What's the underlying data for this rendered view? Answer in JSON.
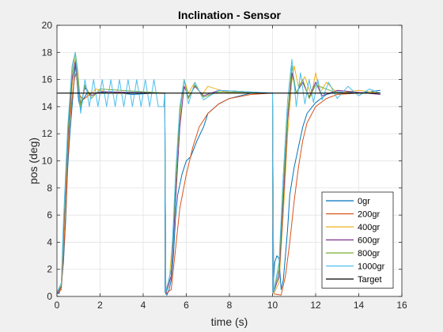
{
  "chart_data": {
    "type": "line",
    "title": "Inclination - Sensor",
    "xlabel": "time (s)",
    "ylabel": "pos (deg)",
    "xlim": [
      0,
      16
    ],
    "ylim": [
      0,
      20
    ],
    "xticks": [
      0,
      2,
      4,
      6,
      8,
      10,
      12,
      14,
      16
    ],
    "yticks": [
      0,
      2,
      4,
      6,
      8,
      10,
      12,
      14,
      16,
      18,
      20
    ],
    "grid": true,
    "legend_position": "bottom-right",
    "series": [
      {
        "name": "0gr",
        "color": "#0072BD",
        "points": [
          [
            0,
            0.3
          ],
          [
            0.1,
            0.2
          ],
          [
            0.2,
            0.8
          ],
          [
            0.3,
            2.5
          ],
          [
            0.4,
            5.5
          ],
          [
            0.5,
            9.5
          ],
          [
            0.6,
            12
          ],
          [
            0.7,
            14
          ],
          [
            0.8,
            16
          ],
          [
            0.85,
            17
          ],
          [
            0.9,
            16.5
          ],
          [
            1.0,
            14.5
          ],
          [
            1.1,
            13.8
          ],
          [
            1.2,
            14.5
          ],
          [
            1.4,
            15
          ],
          [
            1.8,
            15
          ],
          [
            2.5,
            15.1
          ],
          [
            3.5,
            14.9
          ],
          [
            4.5,
            15
          ],
          [
            5.0,
            15
          ],
          [
            5.02,
            0.3
          ],
          [
            5.1,
            0.1
          ],
          [
            5.2,
            0.5
          ],
          [
            5.3,
            1.2
          ],
          [
            5.4,
            3
          ],
          [
            5.5,
            5.8
          ],
          [
            5.6,
            7.5
          ],
          [
            5.8,
            9
          ],
          [
            6.0,
            10
          ],
          [
            6.2,
            10.3
          ],
          [
            6.5,
            11.5
          ],
          [
            6.8,
            12.5
          ],
          [
            7.0,
            13.5
          ],
          [
            7.5,
            14.2
          ],
          [
            8.0,
            14.6
          ],
          [
            8.5,
            14.8
          ],
          [
            9.0,
            15
          ],
          [
            10.0,
            15
          ],
          [
            10.02,
            0.3
          ],
          [
            10.1,
            2.5
          ],
          [
            10.2,
            3
          ],
          [
            10.3,
            2.8
          ],
          [
            10.4,
            0.5
          ],
          [
            10.5,
            1.2
          ],
          [
            10.6,
            3
          ],
          [
            10.7,
            5
          ],
          [
            10.8,
            7.5
          ],
          [
            11.0,
            9.5
          ],
          [
            11.2,
            11
          ],
          [
            11.4,
            12.5
          ],
          [
            11.6,
            13.5
          ],
          [
            12.0,
            14.3
          ],
          [
            12.5,
            14.9
          ],
          [
            13.0,
            15.1
          ],
          [
            14.0,
            15
          ],
          [
            15.0,
            15.2
          ]
        ]
      },
      {
        "name": "200gr",
        "color": "#D95319",
        "points": [
          [
            0,
            0.2
          ],
          [
            0.2,
            0.5
          ],
          [
            0.3,
            3
          ],
          [
            0.4,
            6
          ],
          [
            0.5,
            10
          ],
          [
            0.6,
            13
          ],
          [
            0.8,
            16
          ],
          [
            0.9,
            16.5
          ],
          [
            1.0,
            15
          ],
          [
            1.2,
            14.5
          ],
          [
            1.6,
            15
          ],
          [
            3.0,
            15
          ],
          [
            5.0,
            15
          ],
          [
            5.05,
            0.2
          ],
          [
            5.3,
            0.5
          ],
          [
            5.5,
            3.5
          ],
          [
            5.7,
            6.5
          ],
          [
            6.0,
            9
          ],
          [
            6.3,
            11
          ],
          [
            6.6,
            12.5
          ],
          [
            7.0,
            13.5
          ],
          [
            7.5,
            14.2
          ],
          [
            8.0,
            14.6
          ],
          [
            9.0,
            14.9
          ],
          [
            10.0,
            15
          ],
          [
            10.05,
            0.2
          ],
          [
            10.4,
            0.1
          ],
          [
            10.6,
            1.5
          ],
          [
            10.8,
            4
          ],
          [
            11.0,
            7
          ],
          [
            11.2,
            9.5
          ],
          [
            11.4,
            11.5
          ],
          [
            11.6,
            12.8
          ],
          [
            12.0,
            14
          ],
          [
            12.5,
            14.6
          ],
          [
            13.0,
            14.9
          ],
          [
            14.0,
            15
          ],
          [
            15.0,
            15
          ]
        ]
      },
      {
        "name": "400gr",
        "color": "#EDB120",
        "points": [
          [
            0,
            0.2
          ],
          [
            0.2,
            0.6
          ],
          [
            0.3,
            4
          ],
          [
            0.5,
            11
          ],
          [
            0.7,
            15.5
          ],
          [
            0.85,
            17.5
          ],
          [
            0.95,
            16.5
          ],
          [
            1.1,
            14
          ],
          [
            1.3,
            15.5
          ],
          [
            1.5,
            14.8
          ],
          [
            1.8,
            15.3
          ],
          [
            2.5,
            15
          ],
          [
            5.0,
            15
          ],
          [
            5.05,
            0.2
          ],
          [
            5.2,
            1
          ],
          [
            5.4,
            5
          ],
          [
            5.6,
            11
          ],
          [
            5.8,
            15
          ],
          [
            5.9,
            16
          ],
          [
            6.1,
            15
          ],
          [
            6.4,
            15.8
          ],
          [
            6.7,
            14.8
          ],
          [
            7.0,
            15.5
          ],
          [
            8.0,
            15
          ],
          [
            10.0,
            15
          ],
          [
            10.05,
            0.2
          ],
          [
            10.3,
            1
          ],
          [
            10.5,
            6
          ],
          [
            10.7,
            12
          ],
          [
            10.9,
            16
          ],
          [
            11.0,
            17
          ],
          [
            11.2,
            15.5
          ],
          [
            11.5,
            16.2
          ],
          [
            11.8,
            14.8
          ],
          [
            12.0,
            16.5
          ],
          [
            12.2,
            15
          ],
          [
            12.5,
            15.8
          ],
          [
            13.0,
            15
          ],
          [
            14.0,
            15.2
          ],
          [
            15.0,
            15
          ]
        ]
      },
      {
        "name": "600gr",
        "color": "#7E2F8E",
        "points": [
          [
            0,
            0.2
          ],
          [
            0.2,
            0.7
          ],
          [
            0.3,
            4.5
          ],
          [
            0.5,
            11.5
          ],
          [
            0.7,
            16
          ],
          [
            0.85,
            17.3
          ],
          [
            0.95,
            16
          ],
          [
            1.1,
            14.2
          ],
          [
            1.3,
            15.4
          ],
          [
            1.6,
            14.8
          ],
          [
            2.0,
            15.1
          ],
          [
            5.0,
            15
          ],
          [
            5.05,
            0.2
          ],
          [
            5.3,
            1.5
          ],
          [
            5.5,
            7
          ],
          [
            5.7,
            12.5
          ],
          [
            5.9,
            15.5
          ],
          [
            6.1,
            14.7
          ],
          [
            6.4,
            15.5
          ],
          [
            6.8,
            14.8
          ],
          [
            7.5,
            15.2
          ],
          [
            10.0,
            15
          ],
          [
            10.05,
            0.3
          ],
          [
            10.3,
            1.5
          ],
          [
            10.5,
            7
          ],
          [
            10.7,
            13
          ],
          [
            10.9,
            16.5
          ],
          [
            11.1,
            15
          ],
          [
            11.4,
            15.8
          ],
          [
            11.7,
            14.7
          ],
          [
            12.0,
            15.8
          ],
          [
            12.3,
            14.8
          ],
          [
            13.0,
            15.2
          ],
          [
            15.0,
            14.9
          ]
        ]
      },
      {
        "name": "800gr",
        "color": "#77AC30",
        "points": [
          [
            0,
            0.3
          ],
          [
            0.2,
            0.8
          ],
          [
            0.3,
            5
          ],
          [
            0.5,
            12
          ],
          [
            0.7,
            16.5
          ],
          [
            0.85,
            18
          ],
          [
            0.95,
            16.8
          ],
          [
            1.1,
            14
          ],
          [
            1.3,
            15.6
          ],
          [
            1.6,
            14.6
          ],
          [
            2.0,
            15.3
          ],
          [
            5.0,
            15
          ],
          [
            5.05,
            0.3
          ],
          [
            5.3,
            2
          ],
          [
            5.5,
            8
          ],
          [
            5.7,
            13.5
          ],
          [
            5.9,
            16
          ],
          [
            6.1,
            14.6
          ],
          [
            6.4,
            15.6
          ],
          [
            6.8,
            14.7
          ],
          [
            7.5,
            15.1
          ],
          [
            10.0,
            15
          ],
          [
            10.05,
            0.3
          ],
          [
            10.3,
            2
          ],
          [
            10.5,
            8
          ],
          [
            10.7,
            13.5
          ],
          [
            10.9,
            17
          ],
          [
            11.1,
            15
          ],
          [
            11.4,
            16
          ],
          [
            11.7,
            14.6
          ],
          [
            12.0,
            15.6
          ],
          [
            13.0,
            15
          ],
          [
            15.0,
            15
          ]
        ]
      },
      {
        "name": "1000gr",
        "color": "#4DBEEE",
        "points": [
          [
            0,
            0.3
          ],
          [
            0.2,
            1
          ],
          [
            0.3,
            5.5
          ],
          [
            0.5,
            12.5
          ],
          [
            0.7,
            17
          ],
          [
            0.85,
            18
          ],
          [
            0.95,
            16
          ],
          [
            1.1,
            13.5
          ],
          [
            1.3,
            16
          ],
          [
            1.5,
            14
          ],
          [
            1.7,
            16
          ],
          [
            1.9,
            14
          ],
          [
            2.1,
            16
          ],
          [
            2.3,
            14
          ],
          [
            2.5,
            16
          ],
          [
            2.7,
            14
          ],
          [
            2.9,
            16
          ],
          [
            3.1,
            14
          ],
          [
            3.3,
            16
          ],
          [
            3.5,
            14
          ],
          [
            3.7,
            16
          ],
          [
            3.9,
            14
          ],
          [
            4.1,
            16
          ],
          [
            4.3,
            14
          ],
          [
            4.5,
            16
          ],
          [
            4.7,
            14
          ],
          [
            4.95,
            14
          ],
          [
            5.0,
            15
          ],
          [
            5.05,
            0.3
          ],
          [
            5.3,
            2
          ],
          [
            5.5,
            9
          ],
          [
            5.7,
            14
          ],
          [
            5.9,
            16
          ],
          [
            6.1,
            14.2
          ],
          [
            6.4,
            15.8
          ],
          [
            6.8,
            14.5
          ],
          [
            7.5,
            15.2
          ],
          [
            10.0,
            15
          ],
          [
            10.05,
            0.3
          ],
          [
            10.3,
            2.5
          ],
          [
            10.5,
            9
          ],
          [
            10.7,
            14.5
          ],
          [
            10.9,
            17.5
          ],
          [
            11.1,
            14
          ],
          [
            11.3,
            16.5
          ],
          [
            11.5,
            14.2
          ],
          [
            11.7,
            16
          ],
          [
            11.9,
            14.3
          ],
          [
            12.1,
            16
          ],
          [
            12.3,
            14.5
          ],
          [
            12.6,
            15.8
          ],
          [
            13.0,
            14.6
          ],
          [
            13.5,
            15.5
          ],
          [
            14.0,
            14.8
          ],
          [
            14.5,
            15.3
          ],
          [
            15.0,
            15
          ]
        ]
      },
      {
        "name": "Target",
        "color": "#000000",
        "points": [
          [
            0,
            15
          ],
          [
            15,
            15
          ]
        ]
      }
    ]
  }
}
